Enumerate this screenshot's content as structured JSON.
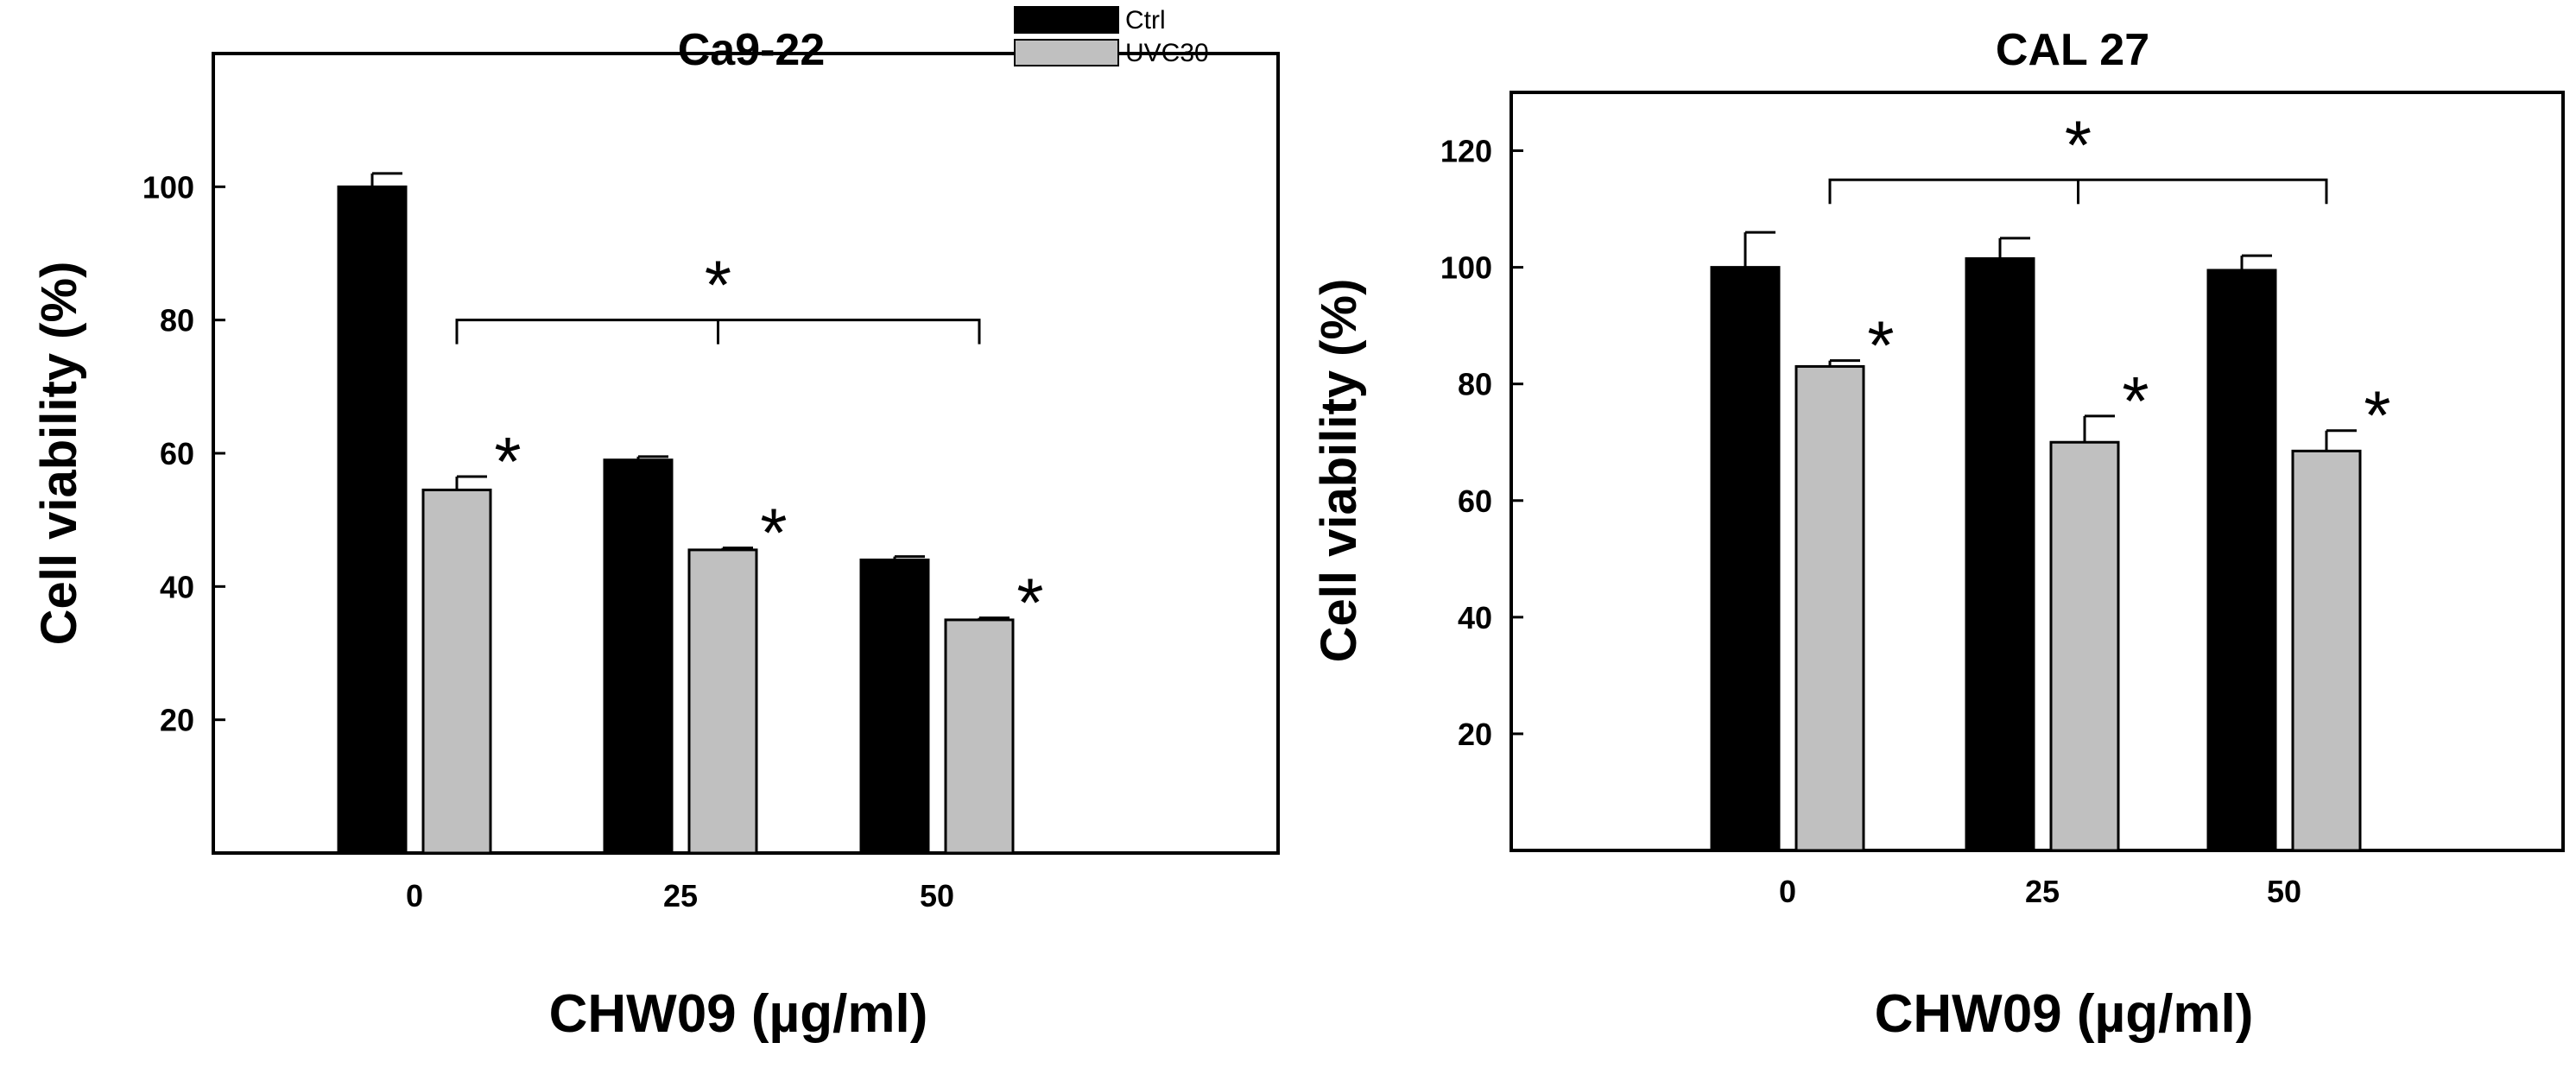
{
  "chart_data": [
    {
      "type": "bar",
      "title": "Ca9-22",
      "xlabel": "CHW09 (µg/ml)",
      "ylabel": "Cell viability (%)",
      "categories": [
        "0",
        "25",
        "50"
      ],
      "yticks": [
        20,
        40,
        60,
        80,
        100
      ],
      "ylim": [
        0,
        120
      ],
      "series": [
        {
          "name": "Ctrl",
          "color": "#000000",
          "values": [
            100,
            59,
            44
          ],
          "errors": [
            2,
            0.5,
            0.5
          ]
        },
        {
          "name": "UVC30",
          "color": "#c0c0c0",
          "values": [
            54.5,
            45.5,
            35
          ],
          "errors": [
            2,
            0.3,
            0.3
          ]
        }
      ],
      "legend": [
        "Ctrl",
        "UVC30"
      ],
      "significance": {
        "bar_markers": [
          {
            "series": "UVC30",
            "category": "0",
            "label": "*"
          },
          {
            "series": "UVC30",
            "category": "25",
            "label": "*"
          },
          {
            "series": "UVC30",
            "category": "50",
            "label": "*"
          }
        ],
        "bracket": {
          "from": "0",
          "to": "50",
          "level": 80,
          "label": "*"
        }
      }
    },
    {
      "type": "bar",
      "title": "CAL 27",
      "xlabel": "CHW09 (µg/ml)",
      "ylabel": "Cell viability (%)",
      "categories": [
        "0",
        "25",
        "50"
      ],
      "yticks": [
        20,
        40,
        60,
        80,
        100,
        120
      ],
      "ylim": [
        0,
        130
      ],
      "series": [
        {
          "name": "Ctrl",
          "color": "#000000",
          "values": [
            100,
            101.5,
            99.5
          ],
          "errors": [
            6,
            3.5,
            2.5
          ]
        },
        {
          "name": "UVC30",
          "color": "#c0c0c0",
          "values": [
            83,
            70,
            68.5
          ],
          "errors": [
            1,
            4.5,
            3.5
          ]
        }
      ],
      "significance": {
        "bar_markers": [
          {
            "series": "UVC30",
            "category": "0",
            "label": "*"
          },
          {
            "series": "UVC30",
            "category": "25",
            "label": "*"
          },
          {
            "series": "UVC30",
            "category": "50",
            "label": "*"
          }
        ],
        "bracket": {
          "from": "0",
          "to": "50",
          "level": 115,
          "label": "*"
        }
      }
    }
  ]
}
